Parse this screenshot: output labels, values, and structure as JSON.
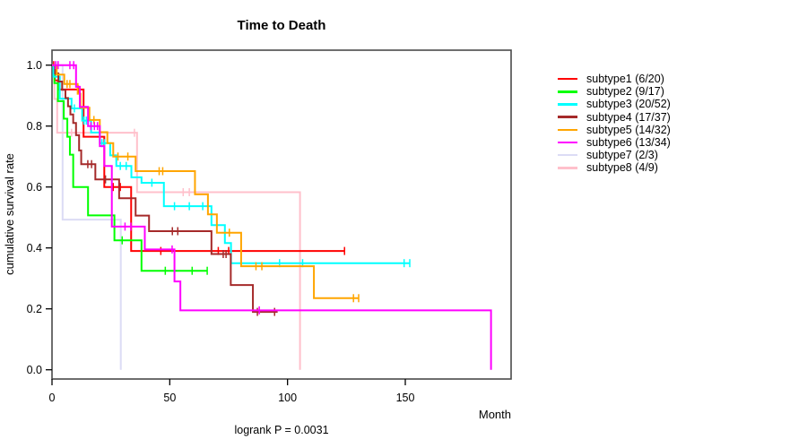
{
  "chart": {
    "title": "Time to Death",
    "xlabel": "Month",
    "ylabel": "cumulative survival rate",
    "footnote": "logrank P = 0.0031"
  },
  "chart_data": {
    "type": "line",
    "subtype": "kaplan-meier-step-curves",
    "title": "Time to Death",
    "xlabel": "Month",
    "ylabel": "cumulative survival rate",
    "annotation": "logrank P = 0.0031",
    "xlim": [
      0,
      195
    ],
    "ylim": [
      0.0,
      1.0
    ],
    "xticks": [
      {
        "v": 0,
        "label": "0"
      },
      {
        "v": 50,
        "label": "50"
      },
      {
        "v": 100,
        "label": "100"
      },
      {
        "v": 150,
        "label": "150"
      }
    ],
    "yticks": [
      {
        "v": 0.0,
        "label": "0.0"
      },
      {
        "v": 0.2,
        "label": "0.2"
      },
      {
        "v": 0.4,
        "label": "0.4"
      },
      {
        "v": 0.6,
        "label": "0.6"
      },
      {
        "v": 0.8,
        "label": "0.8"
      },
      {
        "v": 1.0,
        "label": "1.0"
      }
    ],
    "grid": false,
    "legend_position": "right-outside",
    "series": [
      {
        "name": "subtype1 (6/20)",
        "id": "subtype1",
        "color": "#ff0000",
        "events": 6,
        "n": 20,
        "end": 124.2,
        "ends_at_zero": false,
        "steps": [
          [
            0,
            1
          ],
          [
            1.2,
            0.95
          ],
          [
            2.6,
            0.92
          ],
          [
            13.4,
            0.765
          ],
          [
            22.2,
            0.6
          ],
          [
            33.6,
            0.39
          ]
        ],
        "censors": [
          [
            0.7,
            1
          ],
          [
            11.2,
            0.92
          ],
          [
            26,
            0.6
          ],
          [
            29,
            0.6
          ],
          [
            46.2,
            0.39
          ],
          [
            70.6,
            0.39
          ],
          [
            75,
            0.39
          ],
          [
            124.2,
            0.39
          ]
        ]
      },
      {
        "name": "subtype2 (9/17)",
        "id": "subtype2",
        "color": "#00ff00",
        "events": 9,
        "n": 17,
        "end": 65.9,
        "ends_at_zero": false,
        "steps": [
          [
            0,
            1
          ],
          [
            1,
            0.941
          ],
          [
            2.5,
            0.882
          ],
          [
            5,
            0.824
          ],
          [
            6.5,
            0.765
          ],
          [
            7.6,
            0.706
          ],
          [
            9,
            0.6
          ],
          [
            15.3,
            0.507
          ],
          [
            26.5,
            0.425
          ],
          [
            38,
            0.325
          ]
        ],
        "censors": [
          [
            29.8,
            0.425
          ],
          [
            48.1,
            0.325
          ],
          [
            59.5,
            0.325
          ],
          [
            65.9,
            0.325
          ]
        ]
      },
      {
        "name": "subtype3 (20/52)",
        "id": "subtype3",
        "color": "#00ffff",
        "events": 20,
        "n": 52,
        "end": 151.9,
        "ends_at_zero": false,
        "steps": [
          [
            0,
            1
          ],
          [
            0.6,
            0.962
          ],
          [
            3.3,
            0.89
          ],
          [
            8.3,
            0.858
          ],
          [
            12.8,
            0.818
          ],
          [
            16.6,
            0.779
          ],
          [
            20.3,
            0.744
          ],
          [
            24.7,
            0.704
          ],
          [
            27.3,
            0.669
          ],
          [
            33.7,
            0.632
          ],
          [
            38,
            0.614
          ],
          [
            47.5,
            0.537
          ],
          [
            67.7,
            0.475
          ],
          [
            73.4,
            0.416
          ],
          [
            76,
            0.35
          ]
        ],
        "censors": [
          [
            9.5,
            0.858
          ],
          [
            13.6,
            0.818
          ],
          [
            14.6,
            0.818
          ],
          [
            21.2,
            0.744
          ],
          [
            22.3,
            0.744
          ],
          [
            29,
            0.669
          ],
          [
            31.5,
            0.669
          ],
          [
            42.4,
            0.614
          ],
          [
            52,
            0.537
          ],
          [
            58.3,
            0.537
          ],
          [
            64,
            0.537
          ],
          [
            96.6,
            0.35
          ],
          [
            106.4,
            0.35
          ],
          [
            149.5,
            0.35
          ],
          [
            151.9,
            0.35
          ]
        ]
      },
      {
        "name": "subtype4 (17/37)",
        "id": "subtype4",
        "color": "#a52a2a",
        "events": 17,
        "n": 37,
        "end": 95.8,
        "ends_at_zero": false,
        "steps": [
          [
            0,
            1
          ],
          [
            1.3,
            0.973
          ],
          [
            2.7,
            0.946
          ],
          [
            4.3,
            0.919
          ],
          [
            5.7,
            0.892
          ],
          [
            6.8,
            0.865
          ],
          [
            7.8,
            0.838
          ],
          [
            9,
            0.81
          ],
          [
            10.2,
            0.77
          ],
          [
            11.5,
            0.72
          ],
          [
            12.4,
            0.675
          ],
          [
            18.4,
            0.625
          ],
          [
            28.5,
            0.563
          ],
          [
            35.5,
            0.506
          ],
          [
            41.2,
            0.455
          ],
          [
            67.7,
            0.38
          ],
          [
            75.9,
            0.278
          ],
          [
            85.3,
            0.19
          ]
        ],
        "censors": [
          [
            15.2,
            0.675
          ],
          [
            16.8,
            0.675
          ],
          [
            22.7,
            0.625
          ],
          [
            25.4,
            0.625
          ],
          [
            51.1,
            0.455
          ],
          [
            53.4,
            0.455
          ],
          [
            72.7,
            0.38
          ],
          [
            73.9,
            0.38
          ],
          [
            87.2,
            0.19
          ],
          [
            94.5,
            0.19
          ]
        ]
      },
      {
        "name": "subtype5 (14/32)",
        "id": "subtype5",
        "color": "#ffa500",
        "events": 14,
        "n": 32,
        "end": 130.2,
        "ends_at_zero": false,
        "steps": [
          [
            0,
            1
          ],
          [
            2,
            0.969
          ],
          [
            5.2,
            0.938
          ],
          [
            10.9,
            0.906
          ],
          [
            12.1,
            0.86
          ],
          [
            15.9,
            0.82
          ],
          [
            20.3,
            0.78
          ],
          [
            23.5,
            0.744
          ],
          [
            26,
            0.7
          ],
          [
            35.5,
            0.652
          ],
          [
            60.7,
            0.576
          ],
          [
            66.2,
            0.51
          ],
          [
            70,
            0.45
          ],
          [
            80.3,
            0.34
          ],
          [
            111.2,
            0.235
          ]
        ],
        "censors": [
          [
            6.4,
            0.938
          ],
          [
            7.6,
            0.938
          ],
          [
            17.8,
            0.82
          ],
          [
            28,
            0.7
          ],
          [
            32.2,
            0.7
          ],
          [
            45.5,
            0.652
          ],
          [
            47,
            0.652
          ],
          [
            75.3,
            0.45
          ],
          [
            86.6,
            0.34
          ],
          [
            89.1,
            0.34
          ],
          [
            128,
            0.235
          ],
          [
            130.2,
            0.235
          ]
        ]
      },
      {
        "name": "subtype6 (13/34)",
        "id": "subtype6",
        "color": "#ff00ff",
        "events": 13,
        "n": 34,
        "end": 186.4,
        "ends_at_zero": true,
        "steps": [
          [
            0,
            1
          ],
          [
            10.2,
            0.929
          ],
          [
            11.8,
            0.863
          ],
          [
            15.3,
            0.8
          ],
          [
            20.3,
            0.734
          ],
          [
            22.2,
            0.669
          ],
          [
            25.4,
            0.47
          ],
          [
            39.4,
            0.395
          ],
          [
            52,
            0.29
          ],
          [
            54.5,
            0.195
          ],
          [
            186.4,
            0
          ]
        ],
        "censors": [
          [
            1.5,
            1
          ],
          [
            2.6,
            1
          ],
          [
            7.6,
            1
          ],
          [
            9.2,
            1
          ],
          [
            16.5,
            0.8
          ],
          [
            18,
            0.8
          ],
          [
            19.3,
            0.8
          ],
          [
            31,
            0.47
          ],
          [
            33.5,
            0.47
          ],
          [
            51,
            0.395
          ],
          [
            88,
            0.195
          ]
        ]
      },
      {
        "name": "subtype7 (2/3)",
        "id": "subtype7",
        "color": "#dcdcf5",
        "events": 2,
        "n": 3,
        "end": 29.2,
        "ends_at_zero": true,
        "steps": [
          [
            0,
            1
          ],
          [
            4.5,
            0.493
          ],
          [
            29.2,
            0
          ]
        ],
        "censors": [
          [
            2,
            1
          ]
        ]
      },
      {
        "name": "subtype8 (4/9)",
        "id": "subtype8",
        "color": "#ffc0cb",
        "events": 4,
        "n": 9,
        "end": 105.3,
        "ends_at_zero": true,
        "steps": [
          [
            0,
            1
          ],
          [
            1,
            0.889
          ],
          [
            2.2,
            0.778
          ],
          [
            36.1,
            0.583
          ],
          [
            105.3,
            0
          ]
        ],
        "censors": [
          [
            8.3,
            0.778
          ],
          [
            35,
            0.778
          ],
          [
            55.7,
            0.583
          ],
          [
            58.3,
            0.583
          ]
        ]
      }
    ]
  }
}
